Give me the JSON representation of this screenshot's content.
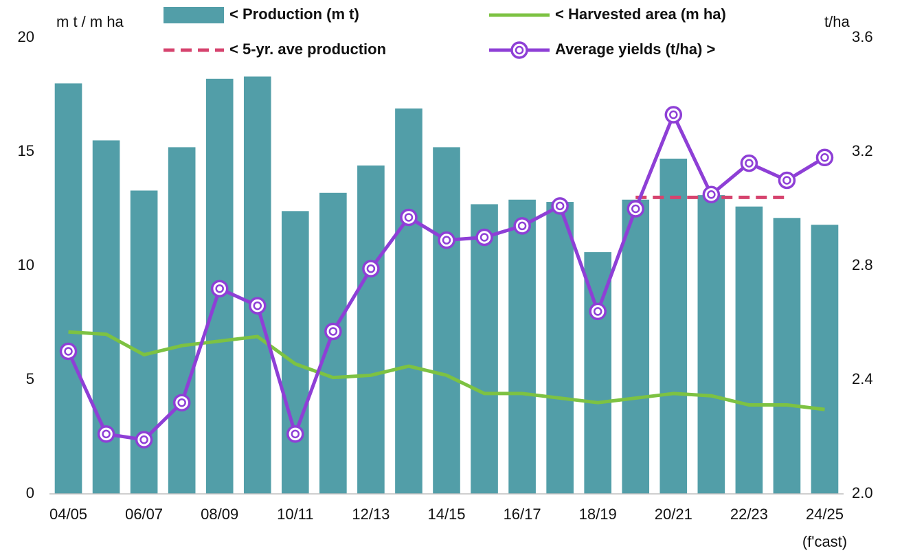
{
  "chart_data": {
    "type": "bar",
    "y_label": "m t / m ha",
    "y2_label": "t/ha",
    "categories": [
      "04/05",
      null,
      "06/07",
      null,
      "08/09",
      null,
      "10/11",
      null,
      "12/13",
      null,
      "14/15",
      null,
      "16/17",
      null,
      "18/19",
      null,
      "20/21",
      null,
      "22/23",
      null,
      "24/25"
    ],
    "forecast_note": "(f'cast)",
    "ylim": [
      0,
      20
    ],
    "yticks": [
      0,
      5,
      10,
      15,
      20
    ],
    "y2lim": [
      2,
      3.6
    ],
    "y2ticks": [
      {
        "value": 2,
        "label": "2.0"
      },
      2.4,
      2.8,
      3.2,
      3.6
    ],
    "series": [
      {
        "name": "< Production (m t)",
        "type": "bar",
        "color": "#529ea8",
        "values": [
          18.0,
          15.5,
          13.3,
          15.2,
          18.2,
          18.3,
          12.4,
          13.2,
          14.4,
          16.9,
          15.2,
          12.7,
          12.9,
          12.8,
          10.6,
          12.9,
          14.7,
          13.1,
          12.6,
          12.1,
          11.8
        ]
      },
      {
        "name": "< Harvested area (m ha)",
        "type": "line",
        "color": "#7dc242",
        "values": [
          7.1,
          7.0,
          6.1,
          6.5,
          6.7,
          6.9,
          5.7,
          5.1,
          5.2,
          5.6,
          5.2,
          4.4,
          4.4,
          4.2,
          4.0,
          4.2,
          4.4,
          4.3,
          3.9,
          3.9,
          3.7
        ]
      },
      {
        "name": "< 5-yr. ave production",
        "type": "line",
        "style": "dashed",
        "color": "#d6436e",
        "values": [
          null,
          null,
          null,
          null,
          null,
          null,
          null,
          null,
          null,
          null,
          null,
          null,
          null,
          null,
          null,
          13.0,
          13.0,
          13.0,
          13.0,
          13.0,
          null
        ]
      },
      {
        "name": "Average yields (t/ha) >",
        "type": "line",
        "marker": "circle",
        "axis": "y2",
        "color": "#8e3fd6",
        "values": [
          2.5,
          2.21,
          2.19,
          2.32,
          2.72,
          2.66,
          2.21,
          2.57,
          2.79,
          2.97,
          2.89,
          2.9,
          2.94,
          3.01,
          2.64,
          3.0,
          3.33,
          3.05,
          3.16,
          3.1,
          3.18
        ]
      }
    ]
  }
}
